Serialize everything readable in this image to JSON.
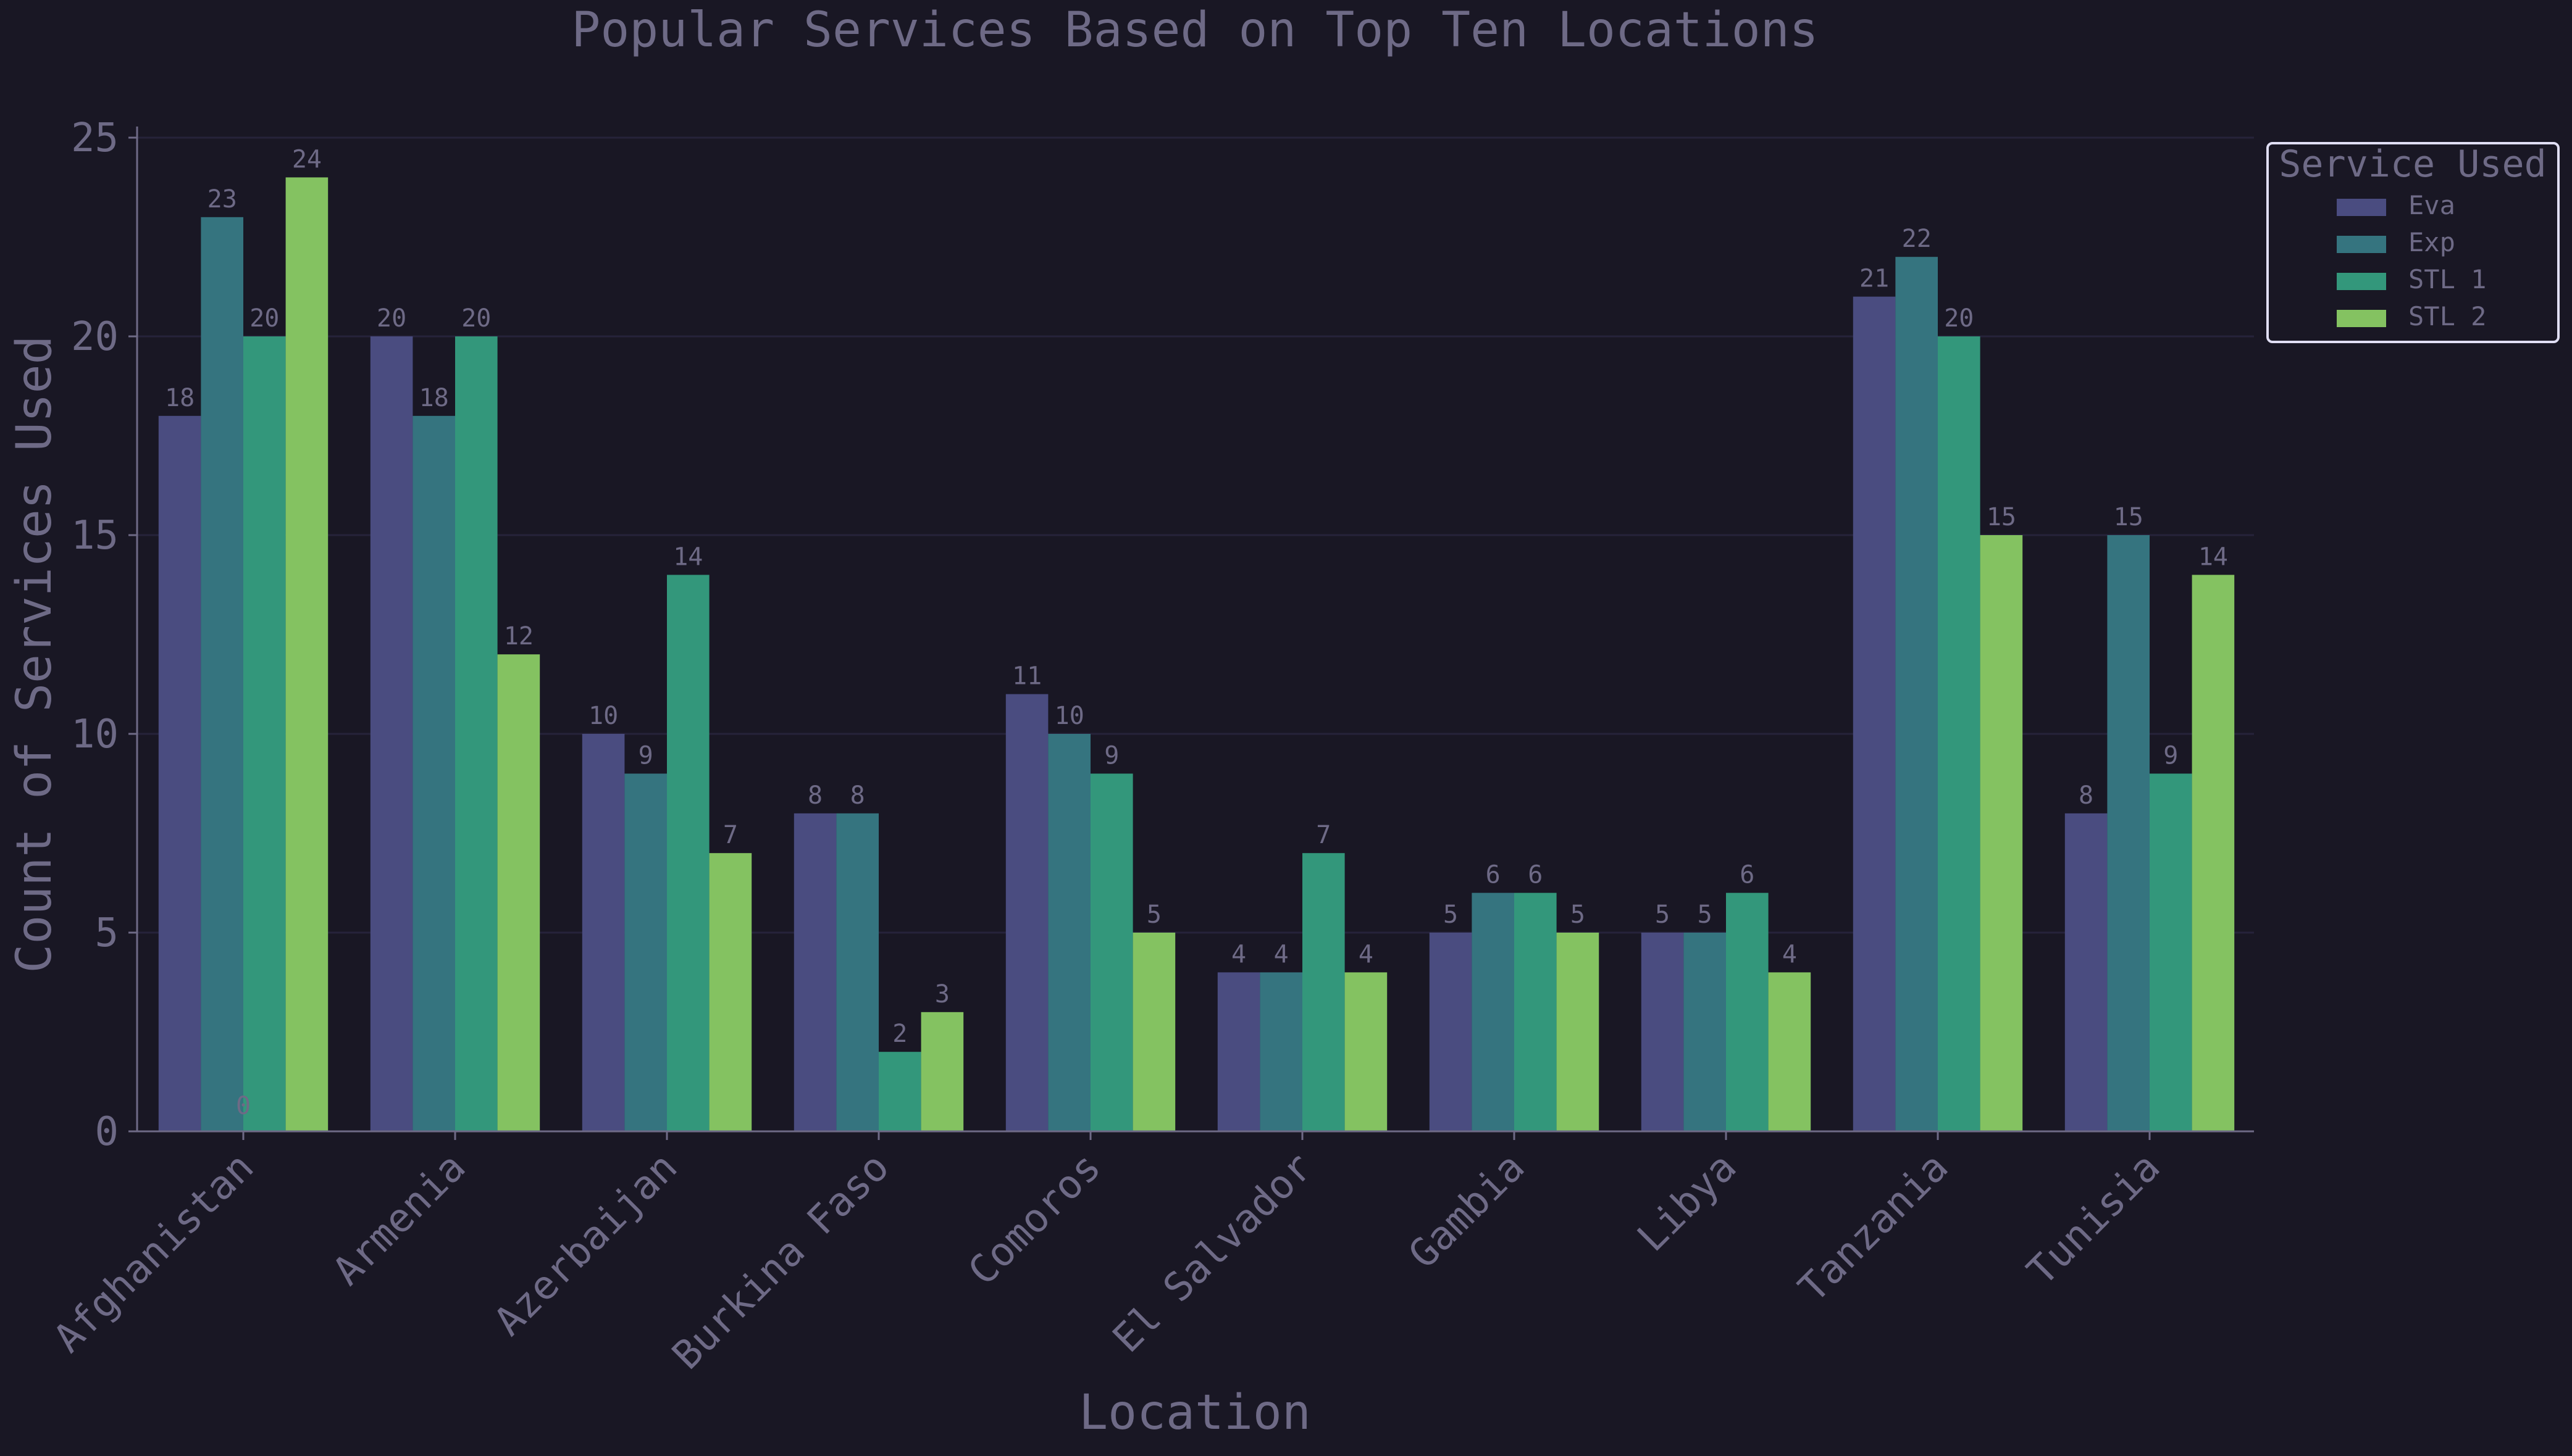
{
  "chart_data": {
    "type": "bar",
    "title": "Popular Services Based on Top Ten Locations",
    "xlabel": "Location",
    "ylabel": "Count of Services Used",
    "ylim": [
      0,
      25
    ],
    "yticks": [
      0,
      5,
      10,
      15,
      20,
      25
    ],
    "grid": true,
    "legend_title": "Service Used",
    "legend_position": "top-right",
    "categories": [
      "Afghanistan",
      "Armenia",
      "Azerbaijan",
      "Burkina Faso",
      "Comoros",
      "El Salvador",
      "Gambia",
      "Libya",
      "Tanzania",
      "Tunisia"
    ],
    "series": [
      {
        "name": "Eva",
        "color": "#4a4c80",
        "values": [
          18,
          20,
          10,
          8,
          11,
          4,
          5,
          5,
          21,
          8
        ]
      },
      {
        "name": "Exp",
        "color": "#35747f",
        "values": [
          23,
          18,
          9,
          8,
          10,
          4,
          6,
          5,
          22,
          15
        ]
      },
      {
        "name": "STL 1",
        "color": "#33977b",
        "values": [
          20,
          20,
          14,
          2,
          9,
          7,
          6,
          6,
          20,
          9
        ]
      },
      {
        "name": "STL 2",
        "color": "#84c261",
        "values": [
          24,
          12,
          7,
          3,
          5,
          4,
          5,
          4,
          15,
          14
        ]
      }
    ],
    "stray_label": "0",
    "colors": {
      "background": "#191724",
      "text": "#6e6a86",
      "grid": "#26233a",
      "axis": "#6e6a86",
      "legend_border": "#e0def4"
    }
  }
}
